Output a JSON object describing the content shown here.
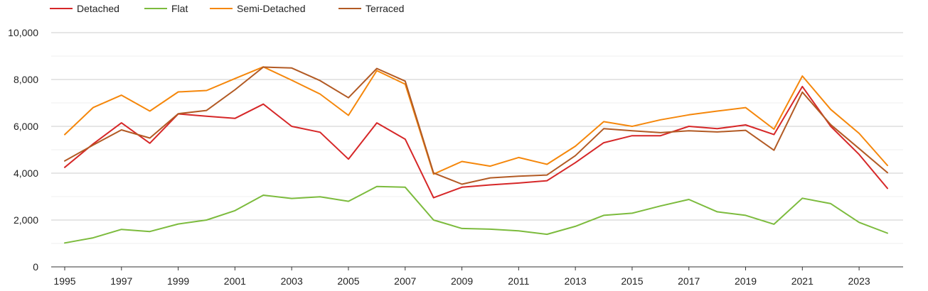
{
  "chart_data": {
    "type": "line",
    "title": "",
    "xlabel": "",
    "ylabel": "",
    "x": [
      1995,
      1996,
      1997,
      1998,
      1999,
      2000,
      2001,
      2002,
      2003,
      2004,
      2005,
      2006,
      2007,
      2008,
      2009,
      2010,
      2011,
      2012,
      2013,
      2014,
      2015,
      2016,
      2017,
      2018,
      2019,
      2020,
      2021,
      2022,
      2023,
      2024
    ],
    "xticks": [
      1995,
      1997,
      1999,
      2001,
      2003,
      2005,
      2007,
      2009,
      2011,
      2013,
      2015,
      2017,
      2019,
      2021,
      2023
    ],
    "xlim": [
      1995,
      2024
    ],
    "yticks": [
      0,
      2000,
      4000,
      6000,
      8000,
      10000
    ],
    "ytick_labels": [
      "0",
      "2,000",
      "4,000",
      "6,000",
      "8,000",
      "10,000"
    ],
    "ylim": [
      0,
      10000
    ],
    "grid": true,
    "legend_position": "top-left",
    "series": [
      {
        "name": "Detached",
        "color": "#d62728",
        "values": [
          4250,
          5250,
          6150,
          5280,
          6530,
          6430,
          6340,
          6950,
          6000,
          5750,
          4600,
          6150,
          5450,
          2950,
          3400,
          3500,
          3580,
          3680,
          4450,
          5300,
          5600,
          5600,
          6000,
          5900,
          6060,
          5650,
          7700,
          6000,
          4800,
          3350
        ]
      },
      {
        "name": "Flat",
        "color": "#7cbb3d",
        "values": [
          1020,
          1240,
          1600,
          1510,
          1830,
          2000,
          2400,
          3060,
          2920,
          2990,
          2800,
          3430,
          3400,
          2000,
          1640,
          1610,
          1540,
          1390,
          1730,
          2200,
          2290,
          2600,
          2880,
          2350,
          2200,
          1820,
          2930,
          2700,
          1900,
          1440
        ]
      },
      {
        "name": "Semi-Detached",
        "color": "#f5870b",
        "values": [
          5650,
          6800,
          7330,
          6650,
          7470,
          7530,
          8040,
          8540,
          7970,
          7380,
          6470,
          8380,
          7800,
          3960,
          4500,
          4300,
          4670,
          4380,
          5150,
          6200,
          6000,
          6280,
          6490,
          6650,
          6800,
          5880,
          8150,
          6720,
          5700,
          4330
        ]
      },
      {
        "name": "Terraced",
        "color": "#b25a24",
        "values": [
          4520,
          5200,
          5850,
          5500,
          6540,
          6680,
          7560,
          8530,
          8490,
          7950,
          7220,
          8470,
          7930,
          4010,
          3530,
          3800,
          3870,
          3920,
          4750,
          5900,
          5810,
          5730,
          5810,
          5760,
          5830,
          4980,
          7460,
          6070,
          5050,
          4020
        ]
      }
    ]
  }
}
